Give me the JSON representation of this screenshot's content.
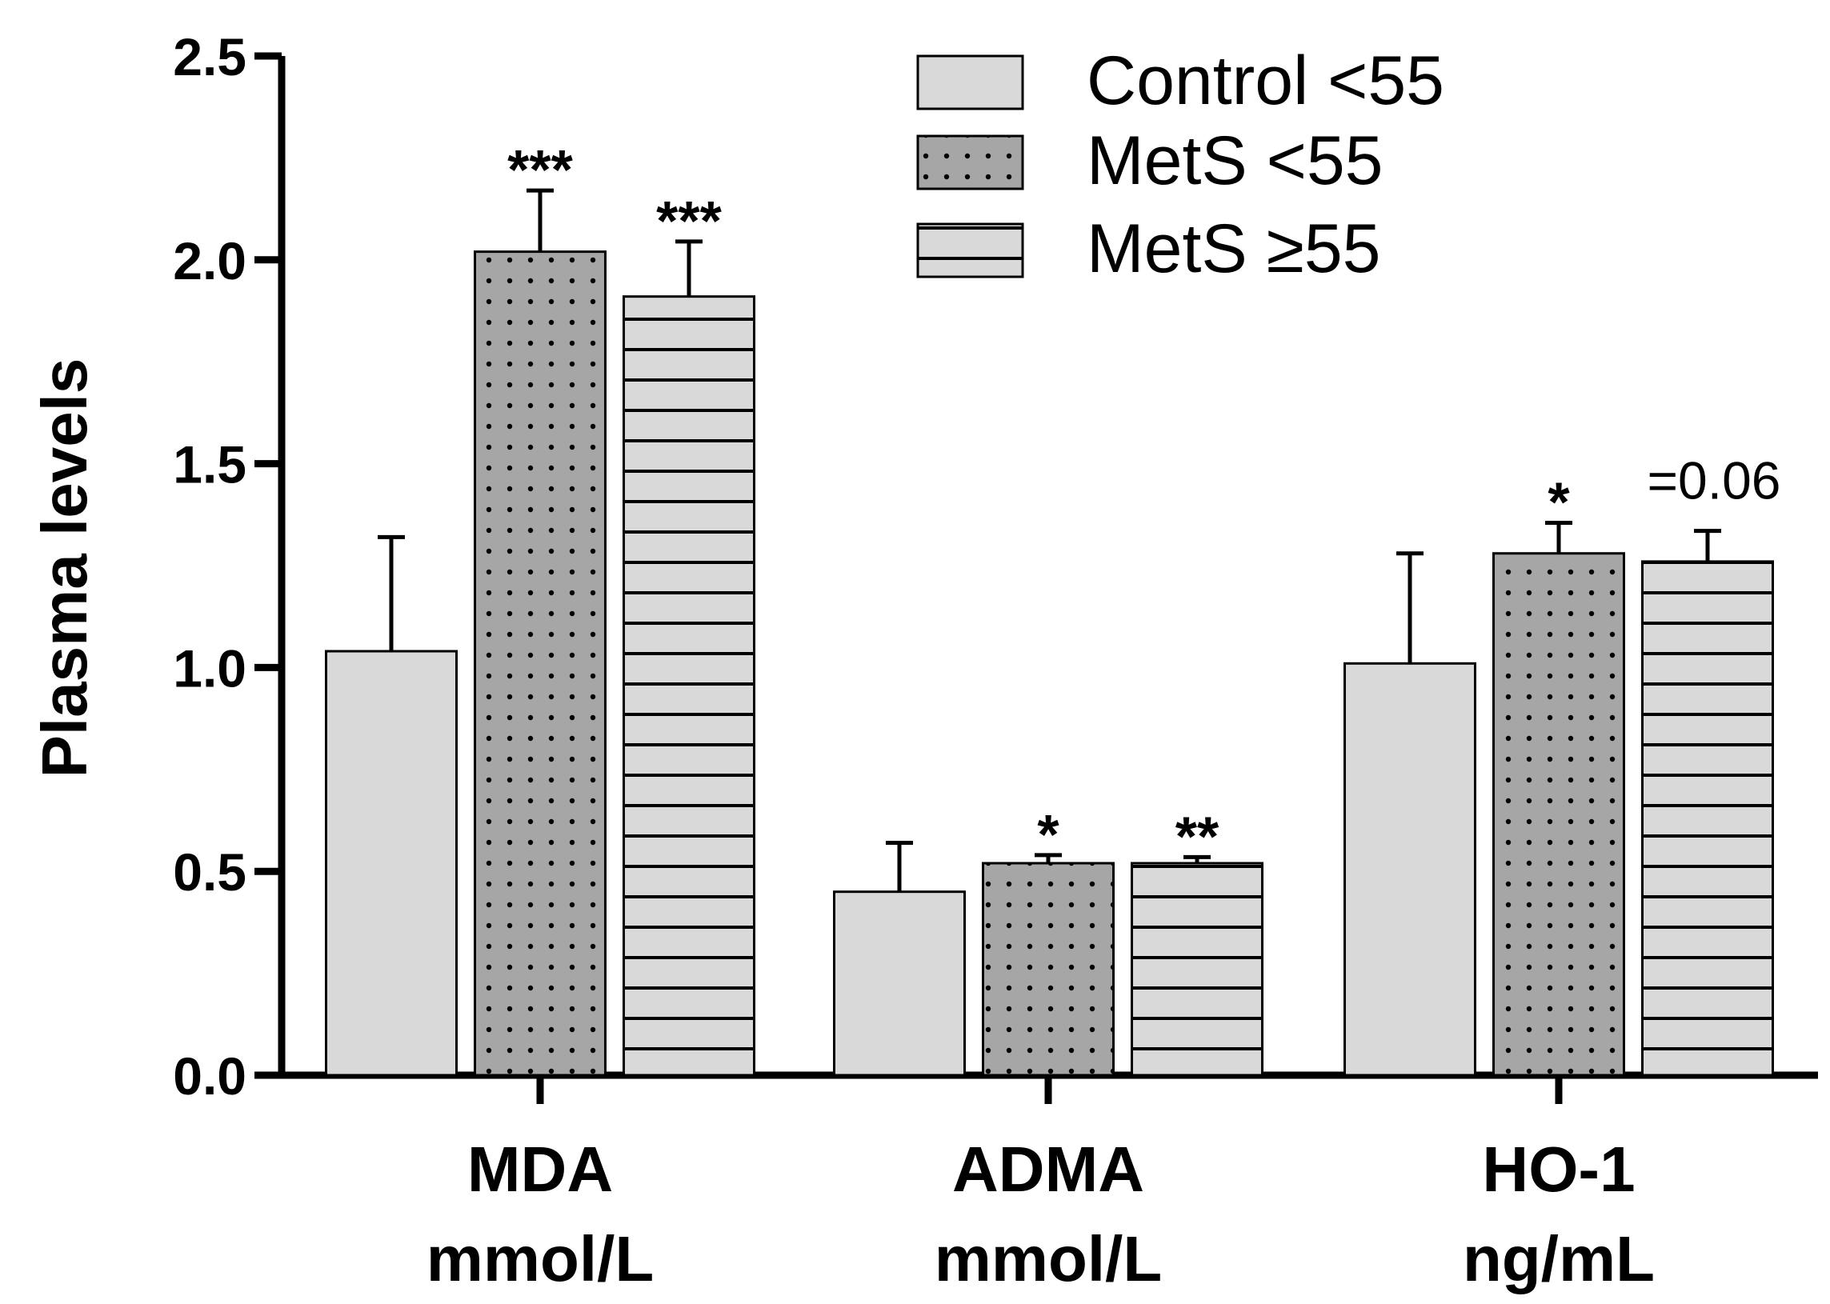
{
  "chart_data": {
    "type": "bar",
    "title": "",
    "xlabel": "",
    "ylabel": "Plasma levels",
    "ylim": [
      0,
      2.5
    ],
    "yticks": [
      "0.0",
      "0.5",
      "1.0",
      "1.5",
      "2.0",
      "2.5"
    ],
    "categories": [
      {
        "name": "MDA",
        "unit": "mmol/L"
      },
      {
        "name": "ADMA",
        "unit": "mmol/L"
      },
      {
        "name": "HO-1",
        "unit": "ng/mL"
      }
    ],
    "series": [
      {
        "name": "Control <55",
        "pattern": "solid",
        "fill": "#d9d9d9",
        "values": [
          1.04,
          0.45,
          1.01
        ],
        "errors": [
          0.28,
          0.12,
          0.27
        ],
        "significance": [
          "",
          "",
          ""
        ]
      },
      {
        "name": "MetS <55",
        "pattern": "dots",
        "fill": "#a6a6a6",
        "values": [
          2.02,
          0.52,
          1.28
        ],
        "errors": [
          0.15,
          0.02,
          0.075
        ],
        "significance": [
          "***",
          "*",
          "*"
        ]
      },
      {
        "name": "MetS ≥55",
        "pattern": "hlines",
        "fill": "#d9d9d9",
        "values": [
          1.91,
          0.52,
          1.26
        ],
        "errors": [
          0.135,
          0.015,
          0.075
        ],
        "significance": [
          "***",
          "**",
          "=0.06"
        ]
      }
    ],
    "legend_position": "top-right",
    "grid": false
  }
}
